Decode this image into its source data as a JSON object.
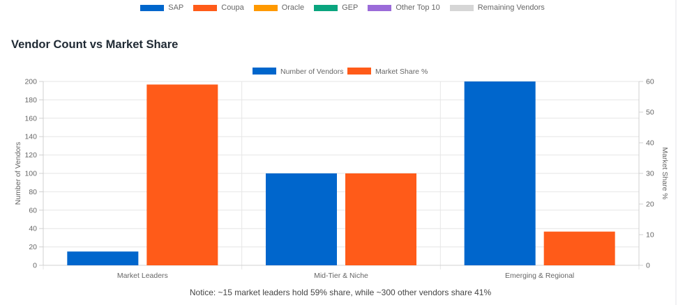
{
  "top_legend": [
    {
      "label": "SAP",
      "color": "#0066cc"
    },
    {
      "label": "Coupa",
      "color": "#ff5b19"
    },
    {
      "label": "Oracle",
      "color": "#ff9900"
    },
    {
      "label": "GEP",
      "color": "#0aa57f"
    },
    {
      "label": "Other Top 10",
      "color": "#9b6bd9"
    },
    {
      "label": "Remaining Vendors",
      "color": "#d6d6d6"
    }
  ],
  "section_title": "Vendor Count vs Market Share",
  "notice": "Notice: ~15 market leaders hold 59% share, while ~300 other vendors share 41%",
  "chart_data": {
    "type": "bar",
    "categories": [
      "Market Leaders",
      "Mid-Tier & Niche",
      "Emerging & Regional"
    ],
    "series": [
      {
        "name": "Number of Vendors",
        "values": [
          15,
          100,
          200
        ],
        "color": "#0066cc",
        "axis": "left"
      },
      {
        "name": "Market Share %",
        "values": [
          59,
          30,
          11
        ],
        "color": "#ff5b19",
        "axis": "right"
      }
    ],
    "ylabel": "Number of Vendors",
    "ylabel_right": "Market Share %",
    "ylim": [
      0,
      200
    ],
    "ylim_right": [
      0,
      60
    ],
    "yticks": [
      0,
      20,
      40,
      60,
      80,
      100,
      120,
      140,
      160,
      180,
      200
    ],
    "yticks_right": [
      0,
      10,
      20,
      30,
      40,
      50,
      60
    ],
    "legend_position": "top",
    "grid": true
  }
}
